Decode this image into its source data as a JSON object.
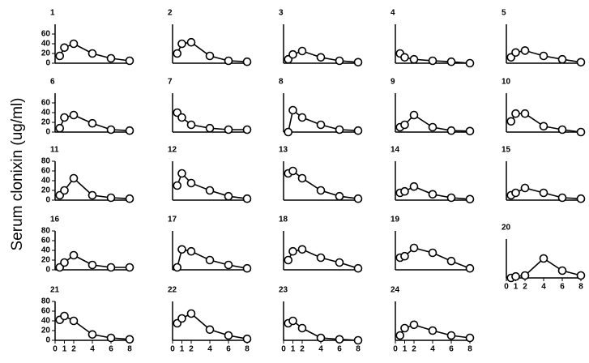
{
  "axis_label": "Serum clonixin (ug/ml)",
  "chart_data": [
    {
      "type": "line",
      "title": "1",
      "x": [
        0.5,
        1,
        2,
        4,
        6,
        8
      ],
      "values": [
        15,
        32,
        40,
        20,
        10,
        5
      ],
      "xlim": [
        0,
        8
      ],
      "ylim": [
        0,
        80
      ],
      "yticks": [
        0,
        20,
        40,
        60
      ]
    },
    {
      "type": "line",
      "title": "2",
      "x": [
        0.5,
        1,
        2,
        4,
        6,
        8
      ],
      "values": [
        20,
        40,
        43,
        15,
        5,
        3
      ],
      "xlim": [
        0,
        8
      ],
      "ylim": [
        0,
        80
      ]
    },
    {
      "type": "line",
      "title": "3",
      "x": [
        0.5,
        1,
        2,
        4,
        6,
        8
      ],
      "values": [
        8,
        18,
        25,
        12,
        5,
        2
      ],
      "xlim": [
        0,
        8
      ],
      "ylim": [
        0,
        80
      ]
    },
    {
      "type": "line",
      "title": "4",
      "x": [
        0.5,
        1,
        2,
        4,
        6,
        8
      ],
      "values": [
        20,
        12,
        8,
        5,
        3,
        0
      ],
      "xlim": [
        0,
        8
      ],
      "ylim": [
        0,
        80
      ]
    },
    {
      "type": "line",
      "title": "5",
      "x": [
        0.5,
        1,
        2,
        4,
        6,
        8
      ],
      "values": [
        12,
        22,
        26,
        15,
        8,
        2
      ],
      "xlim": [
        0,
        8
      ],
      "ylim": [
        0,
        80
      ]
    },
    {
      "type": "line",
      "title": "6",
      "x": [
        0.5,
        1,
        2,
        4,
        6,
        8
      ],
      "values": [
        8,
        30,
        35,
        18,
        5,
        3
      ],
      "xlim": [
        0,
        8
      ],
      "ylim": [
        0,
        80
      ],
      "yticks": [
        0,
        20,
        40,
        60
      ]
    },
    {
      "type": "line",
      "title": "7",
      "x": [
        0.5,
        1,
        2,
        4,
        6,
        8
      ],
      "values": [
        40,
        30,
        15,
        8,
        5,
        5
      ],
      "xlim": [
        0,
        8
      ],
      "ylim": [
        0,
        80
      ]
    },
    {
      "type": "line",
      "title": "8",
      "x": [
        0.5,
        1,
        2,
        4,
        6,
        8
      ],
      "values": [
        0,
        45,
        30,
        15,
        5,
        3
      ],
      "xlim": [
        0,
        8
      ],
      "ylim": [
        0,
        80
      ]
    },
    {
      "type": "line",
      "title": "9",
      "x": [
        0.5,
        1,
        2,
        4,
        6,
        8
      ],
      "values": [
        10,
        15,
        35,
        10,
        3,
        2
      ],
      "xlim": [
        0,
        8
      ],
      "ylim": [
        0,
        80
      ]
    },
    {
      "type": "line",
      "title": "10",
      "x": [
        0.5,
        1,
        2,
        4,
        6,
        8
      ],
      "values": [
        22,
        38,
        38,
        12,
        5,
        0
      ],
      "xlim": [
        0,
        8
      ],
      "ylim": [
        0,
        80
      ]
    },
    {
      "type": "line",
      "title": "11",
      "x": [
        0.5,
        1,
        2,
        4,
        6,
        8
      ],
      "values": [
        10,
        20,
        45,
        10,
        5,
        3
      ],
      "xlim": [
        0,
        8
      ],
      "ylim": [
        0,
        80
      ],
      "yticks": [
        0,
        20,
        40,
        60,
        80
      ]
    },
    {
      "type": "line",
      "title": "12",
      "x": [
        0.5,
        1,
        2,
        4,
        6,
        8
      ],
      "values": [
        30,
        55,
        35,
        20,
        8,
        3
      ],
      "xlim": [
        0,
        8
      ],
      "ylim": [
        0,
        80
      ]
    },
    {
      "type": "line",
      "title": "13",
      "x": [
        0.5,
        1,
        2,
        4,
        6,
        8
      ],
      "values": [
        55,
        60,
        45,
        20,
        8,
        3
      ],
      "xlim": [
        0,
        8
      ],
      "ylim": [
        0,
        80
      ]
    },
    {
      "type": "line",
      "title": "14",
      "x": [
        0.5,
        1,
        2,
        4,
        6,
        8
      ],
      "values": [
        15,
        18,
        28,
        12,
        5,
        2
      ],
      "xlim": [
        0,
        8
      ],
      "ylim": [
        0,
        80
      ]
    },
    {
      "type": "line",
      "title": "15",
      "x": [
        0.5,
        1,
        2,
        4,
        6,
        8
      ],
      "values": [
        10,
        15,
        25,
        15,
        5,
        3
      ],
      "xlim": [
        0,
        8
      ],
      "ylim": [
        0,
        80
      ]
    },
    {
      "type": "line",
      "title": "16",
      "x": [
        0.5,
        1,
        2,
        4,
        6,
        8
      ],
      "values": [
        5,
        15,
        30,
        10,
        5,
        5
      ],
      "xlim": [
        0,
        8
      ],
      "ylim": [
        0,
        80
      ],
      "yticks": [
        0,
        20,
        40,
        60,
        80
      ]
    },
    {
      "type": "line",
      "title": "17",
      "x": [
        0.5,
        1,
        2,
        4,
        6,
        8
      ],
      "values": [
        5,
        42,
        38,
        20,
        10,
        3
      ],
      "xlim": [
        0,
        8
      ],
      "ylim": [
        0,
        80
      ]
    },
    {
      "type": "line",
      "title": "18",
      "x": [
        0.5,
        1,
        2,
        4,
        6,
        8
      ],
      "values": [
        20,
        38,
        42,
        25,
        15,
        3
      ],
      "xlim": [
        0,
        8
      ],
      "ylim": [
        0,
        80
      ]
    },
    {
      "type": "line",
      "title": "19",
      "x": [
        0.5,
        1,
        2,
        4,
        6,
        8
      ],
      "values": [
        25,
        28,
        45,
        35,
        18,
        3
      ],
      "xlim": [
        0,
        8
      ],
      "ylim": [
        0,
        80
      ]
    },
    {
      "type": "line",
      "title": "20",
      "x": [
        0.5,
        1,
        2,
        4,
        6,
        8
      ],
      "values": [
        0,
        3,
        5,
        40,
        15,
        5
      ],
      "xlim": [
        0,
        8
      ],
      "ylim": [
        0,
        80
      ],
      "xticks": [
        0,
        1,
        2,
        4,
        6,
        8
      ]
    },
    {
      "type": "line",
      "title": "21",
      "x": [
        0.5,
        1,
        2,
        4,
        6,
        8
      ],
      "values": [
        42,
        50,
        40,
        12,
        5,
        2
      ],
      "xlim": [
        0,
        8
      ],
      "ylim": [
        0,
        80
      ],
      "yticks": [
        0,
        20,
        40,
        60,
        80
      ],
      "xticks": [
        0,
        1,
        2,
        4,
        6,
        8
      ]
    },
    {
      "type": "line",
      "title": "22",
      "x": [
        0.5,
        1,
        2,
        4,
        6,
        8
      ],
      "values": [
        35,
        45,
        55,
        22,
        10,
        3
      ],
      "xlim": [
        0,
        8
      ],
      "ylim": [
        0,
        80
      ],
      "xticks": [
        0,
        1,
        2,
        4,
        6,
        8
      ]
    },
    {
      "type": "line",
      "title": "23",
      "x": [
        0.5,
        1,
        2,
        4,
        6,
        8
      ],
      "values": [
        35,
        40,
        25,
        5,
        2,
        0
      ],
      "xlim": [
        0,
        8
      ],
      "ylim": [
        0,
        80
      ],
      "xticks": [
        0,
        1,
        2,
        4,
        6,
        8
      ]
    },
    {
      "type": "line",
      "title": "24",
      "x": [
        0.5,
        1,
        2,
        4,
        6,
        8
      ],
      "values": [
        10,
        25,
        32,
        20,
        10,
        5
      ],
      "xlim": [
        0,
        8
      ],
      "ylim": [
        0,
        80
      ],
      "xticks": [
        0,
        1,
        2,
        4,
        6,
        8
      ]
    }
  ]
}
